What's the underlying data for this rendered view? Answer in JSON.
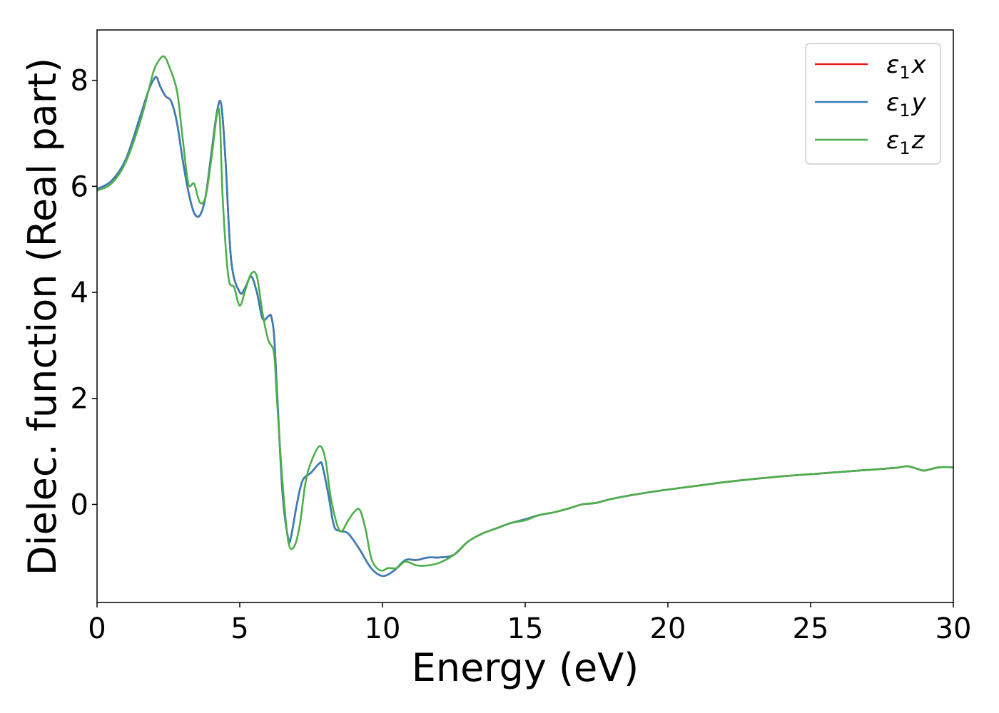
{
  "chart_data": {
    "type": "line",
    "xlabel": "Energy (eV)",
    "ylabel": "Dielec. function (Real part)",
    "xlim": [
      0,
      30
    ],
    "ylim": [
      -1.85,
      8.95
    ],
    "xticks": [
      "0",
      "5",
      "10",
      "15",
      "20",
      "25",
      "30"
    ],
    "yticks": [
      "0",
      "2",
      "4",
      "6",
      "8"
    ],
    "grid": false,
    "legend_position": "top-right",
    "series": [
      {
        "name": "ε1x",
        "legend": {
          "base": "ε",
          "sub": "1",
          "var": "x"
        },
        "color": "#e41a1c",
        "x": [
          0,
          0.5,
          1.0,
          1.5,
          1.8,
          2.0,
          2.1,
          2.2,
          2.4,
          2.6,
          2.8,
          3.0,
          3.2,
          3.4,
          3.6,
          3.8,
          4.0,
          4.2,
          4.35,
          4.5,
          4.7,
          5.0,
          5.2,
          5.4,
          5.6,
          5.8,
          6.0,
          6.1,
          6.2,
          6.3,
          6.5,
          6.7,
          6.8,
          7.0,
          7.2,
          7.5,
          7.8,
          7.9,
          8.1,
          8.3,
          8.5,
          8.8,
          9.2,
          9.6,
          10.0,
          10.4,
          10.8,
          11.2,
          11.6,
          12.0,
          12.5,
          13.0,
          13.5,
          14.0,
          14.5,
          15.0,
          15.5,
          16.0,
          16.5,
          17.0,
          17.5,
          18.0,
          19.0,
          20.0,
          21.0,
          22.0,
          23.0,
          24.0,
          25.0,
          26.0,
          27.0,
          28.0,
          28.4,
          28.8,
          29.0,
          29.5,
          30.0
        ],
        "y": [
          5.95,
          6.1,
          6.5,
          7.3,
          7.8,
          8.03,
          8.05,
          7.9,
          7.7,
          7.6,
          7.2,
          6.5,
          5.9,
          5.5,
          5.45,
          5.8,
          6.6,
          7.4,
          7.55,
          6.5,
          4.6,
          4.0,
          4.1,
          4.3,
          4.0,
          3.5,
          3.55,
          3.55,
          3.2,
          2.2,
          0.2,
          -0.65,
          -0.6,
          0.0,
          0.45,
          0.6,
          0.78,
          0.72,
          0.2,
          -0.4,
          -0.5,
          -0.55,
          -0.85,
          -1.2,
          -1.35,
          -1.25,
          -1.05,
          -1.05,
          -1.0,
          -1.0,
          -0.95,
          -0.7,
          -0.55,
          -0.45,
          -0.35,
          -0.28,
          -0.2,
          -0.15,
          -0.08,
          0.0,
          0.03,
          0.1,
          0.2,
          0.28,
          0.35,
          0.42,
          0.48,
          0.53,
          0.57,
          0.61,
          0.65,
          0.69,
          0.72,
          0.66,
          0.64,
          0.7,
          0.7
        ]
      },
      {
        "name": "ε1y",
        "legend": {
          "base": "ε",
          "sub": "1",
          "var": "y"
        },
        "color": "#377eb8",
        "x": [
          0,
          0.5,
          1.0,
          1.5,
          1.8,
          2.0,
          2.1,
          2.2,
          2.4,
          2.6,
          2.8,
          3.0,
          3.2,
          3.4,
          3.6,
          3.8,
          4.0,
          4.2,
          4.35,
          4.5,
          4.7,
          5.0,
          5.2,
          5.4,
          5.6,
          5.8,
          6.0,
          6.1,
          6.2,
          6.3,
          6.5,
          6.7,
          6.8,
          7.0,
          7.2,
          7.5,
          7.8,
          7.9,
          8.1,
          8.3,
          8.5,
          8.8,
          9.2,
          9.6,
          10.0,
          10.4,
          10.8,
          11.2,
          11.6,
          12.0,
          12.5,
          13.0,
          13.5,
          14.0,
          14.5,
          15.0,
          15.5,
          16.0,
          16.5,
          17.0,
          17.5,
          18.0,
          19.0,
          20.0,
          21.0,
          22.0,
          23.0,
          24.0,
          25.0,
          26.0,
          27.0,
          28.0,
          28.4,
          28.8,
          29.0,
          29.5,
          30.0
        ],
        "y": [
          5.95,
          6.1,
          6.5,
          7.3,
          7.8,
          8.03,
          8.05,
          7.9,
          7.7,
          7.6,
          7.2,
          6.5,
          5.9,
          5.5,
          5.45,
          5.8,
          6.6,
          7.4,
          7.55,
          6.5,
          4.6,
          4.0,
          4.1,
          4.3,
          4.0,
          3.5,
          3.55,
          3.55,
          3.2,
          2.2,
          0.2,
          -0.65,
          -0.6,
          0.0,
          0.45,
          0.6,
          0.78,
          0.72,
          0.2,
          -0.4,
          -0.5,
          -0.55,
          -0.85,
          -1.2,
          -1.35,
          -1.25,
          -1.05,
          -1.05,
          -1.0,
          -1.0,
          -0.95,
          -0.7,
          -0.55,
          -0.45,
          -0.35,
          -0.28,
          -0.2,
          -0.15,
          -0.08,
          0.0,
          0.03,
          0.1,
          0.2,
          0.28,
          0.35,
          0.42,
          0.48,
          0.53,
          0.57,
          0.61,
          0.65,
          0.69,
          0.72,
          0.66,
          0.64,
          0.7,
          0.7
        ]
      },
      {
        "name": "ε1z",
        "legend": {
          "base": "ε",
          "sub": "1",
          "var": "z"
        },
        "color": "#4daf4a",
        "x": [
          0,
          0.5,
          1.0,
          1.5,
          1.8,
          2.0,
          2.2,
          2.35,
          2.5,
          2.8,
          3.0,
          3.2,
          3.4,
          3.6,
          3.8,
          4.0,
          4.2,
          4.3,
          4.4,
          4.6,
          4.8,
          5.0,
          5.2,
          5.4,
          5.6,
          5.8,
          6.0,
          6.2,
          6.3,
          6.5,
          6.7,
          6.9,
          7.1,
          7.3,
          7.5,
          7.8,
          8.0,
          8.2,
          8.5,
          8.8,
          9.0,
          9.2,
          9.4,
          9.6,
          9.8,
          10.0,
          10.2,
          10.5,
          10.8,
          11.2,
          11.6,
          12.0,
          12.5,
          13.0,
          13.5,
          14.0,
          14.5,
          15.0,
          15.5,
          16.0,
          16.5,
          17.0,
          17.5,
          18.0,
          19.0,
          20.0,
          21.0,
          22.0,
          23.0,
          24.0,
          25.0,
          26.0,
          27.0,
          28.0,
          28.4,
          28.8,
          29.0,
          29.5,
          30.0
        ],
        "y": [
          5.92,
          6.05,
          6.45,
          7.2,
          7.8,
          8.2,
          8.4,
          8.45,
          8.3,
          7.8,
          6.9,
          6.05,
          6.05,
          5.7,
          5.8,
          6.5,
          7.35,
          7.3,
          5.8,
          4.3,
          4.1,
          3.75,
          4.05,
          4.35,
          4.3,
          3.6,
          3.1,
          2.85,
          2.0,
          0.4,
          -0.7,
          -0.8,
          -0.4,
          0.4,
          0.8,
          1.1,
          0.85,
          0.1,
          -0.5,
          -0.3,
          -0.15,
          -0.1,
          -0.45,
          -1.0,
          -1.2,
          -1.25,
          -1.2,
          -1.2,
          -1.08,
          -1.15,
          -1.15,
          -1.1,
          -0.95,
          -0.7,
          -0.55,
          -0.45,
          -0.35,
          -0.3,
          -0.2,
          -0.15,
          -0.08,
          0.0,
          0.03,
          0.1,
          0.2,
          0.28,
          0.35,
          0.42,
          0.48,
          0.53,
          0.57,
          0.61,
          0.65,
          0.69,
          0.72,
          0.66,
          0.64,
          0.7,
          0.7
        ]
      }
    ]
  }
}
